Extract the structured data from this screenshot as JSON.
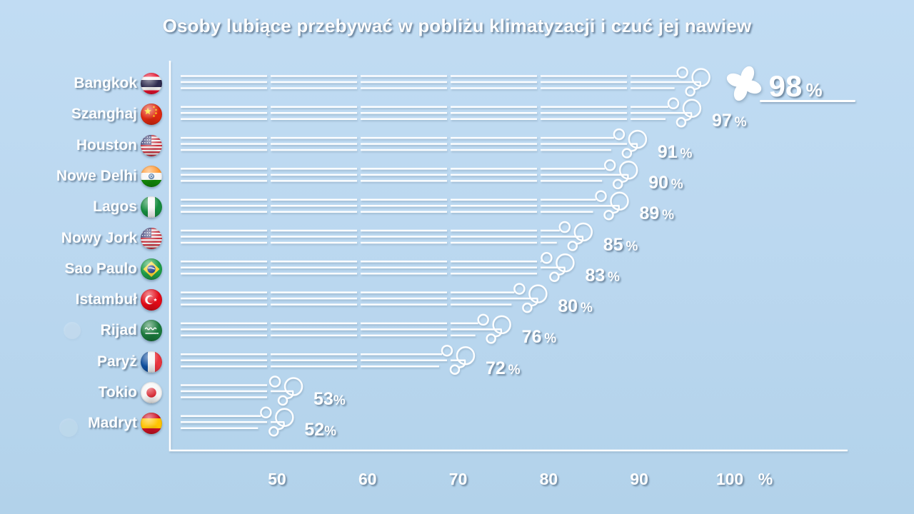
{
  "chart_data": {
    "type": "bar",
    "orientation": "horizontal",
    "bar_style": "wind-gust-lines",
    "title": "Osoby lubiące przebywać w pobliżu klimatyzacji i czuć jej nawiew",
    "unit": "%",
    "categories": [
      "Bangkok",
      "Szanghaj",
      "Houston",
      "Nowe Delhi",
      "Lagos",
      "Nowy Jork",
      "Sao Paulo",
      "Istambuł",
      "Rijad",
      "Paryż",
      "Tokio",
      "Madryt"
    ],
    "flags": [
      "thailand",
      "china",
      "usa",
      "india",
      "nigeria",
      "usa",
      "brazil",
      "turkey",
      "saudi-arabia",
      "france",
      "japan",
      "spain"
    ],
    "values": [
      98,
      97,
      91,
      90,
      89,
      85,
      83,
      80,
      76,
      72,
      53,
      52
    ],
    "value_labels": [
      "98 %",
      "97 %",
      "91 %",
      "90 %",
      "89 %",
      "85 %",
      "83 %",
      "80 %",
      "76 %",
      "72 %",
      "53%",
      "52%"
    ],
    "x_axis": {
      "ticks": [
        50,
        60,
        70,
        80,
        90,
        100
      ],
      "unit_label": "%"
    },
    "xlim": [
      38,
      100
    ],
    "grid": false,
    "legend": "none",
    "highlight": {
      "category": "Bangkok",
      "value": 98,
      "icon": "fan-icon",
      "underlined": true
    }
  },
  "colors": {
    "background_top": "#c1dcf3",
    "background_bottom": "#b2d2ea",
    "bar": "#ffffff",
    "text": "#ffffff",
    "text_shadow": "rgba(94,120,145,0.85)"
  }
}
